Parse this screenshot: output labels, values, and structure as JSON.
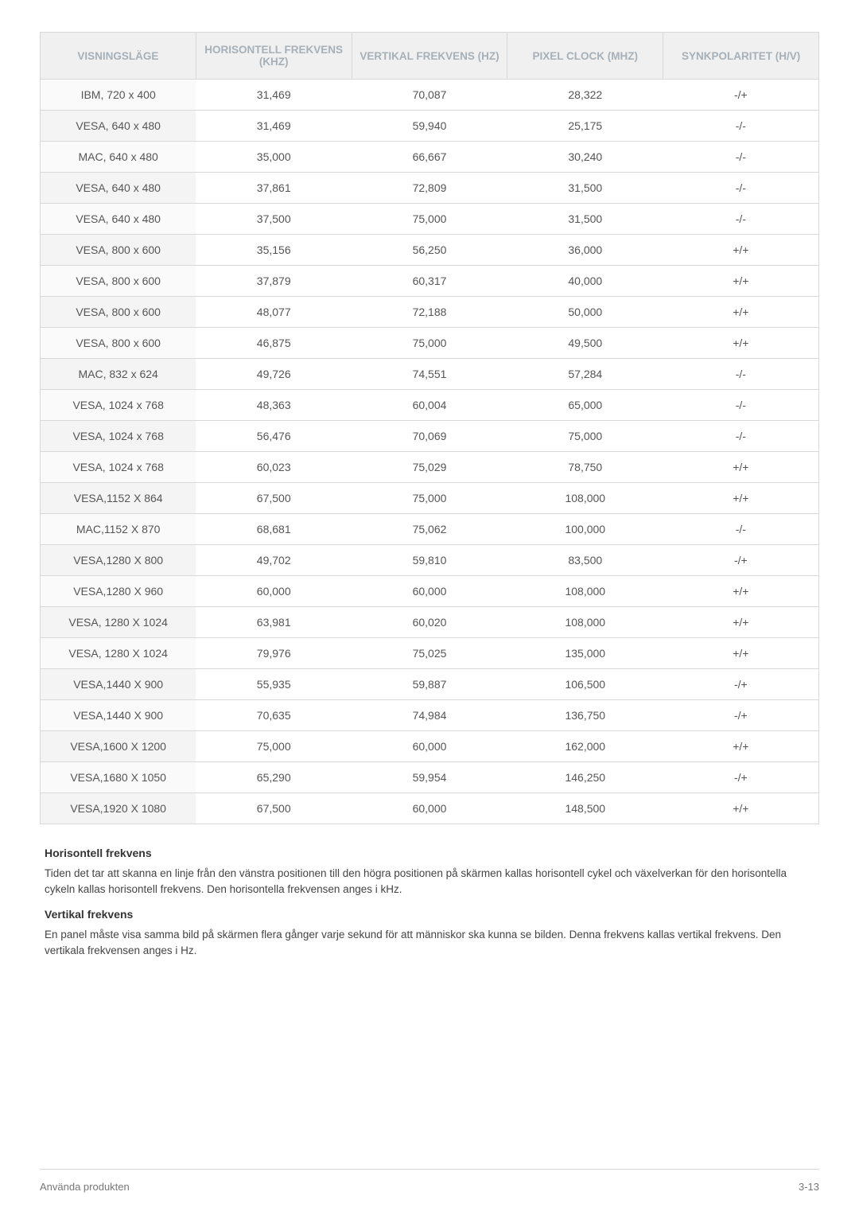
{
  "table": {
    "type": "table",
    "header_bg": "#f0f0f0",
    "header_color": "#a6b0b8",
    "border_color": "#d8d8d8",
    "row_bg_odd": "#fafafa",
    "row_bg_even": "#f4f4f4",
    "text_color": "#555555",
    "font_size": 14,
    "columns": [
      "VISNINGSLÄGE",
      "HORISONTELL FREKVENS (KHZ)",
      "VERTIKAL FREKVENS (HZ)",
      "PIXEL CLOCK (MHZ)",
      "SYNKPOLARITET (H/V)"
    ],
    "rows": [
      [
        "IBM, 720 x 400",
        "31,469",
        "70,087",
        "28,322",
        "-/+"
      ],
      [
        "VESA, 640 x 480",
        "31,469",
        "59,940",
        "25,175",
        "-/-"
      ],
      [
        "MAC, 640 x 480",
        "35,000",
        "66,667",
        "30,240",
        "-/-"
      ],
      [
        "VESA, 640 x 480",
        "37,861",
        "72,809",
        "31,500",
        "-/-"
      ],
      [
        "VESA, 640 x 480",
        "37,500",
        "75,000",
        "31,500",
        "-/-"
      ],
      [
        "VESA, 800 x 600",
        "35,156",
        "56,250",
        "36,000",
        "+/+"
      ],
      [
        "VESA, 800 x 600",
        "37,879",
        "60,317",
        "40,000",
        "+/+"
      ],
      [
        "VESA, 800 x 600",
        "48,077",
        "72,188",
        "50,000",
        "+/+"
      ],
      [
        "VESA, 800 x 600",
        "46,875",
        "75,000",
        "49,500",
        "+/+"
      ],
      [
        "MAC, 832 x 624",
        "49,726",
        "74,551",
        "57,284",
        "-/-"
      ],
      [
        "VESA, 1024 x 768",
        "48,363",
        "60,004",
        "65,000",
        "-/-"
      ],
      [
        "VESA, 1024 x 768",
        "56,476",
        "70,069",
        "75,000",
        "-/-"
      ],
      [
        "VESA, 1024 x 768",
        "60,023",
        "75,029",
        "78,750",
        "+/+"
      ],
      [
        "VESA,1152 X 864",
        "67,500",
        "75,000",
        "108,000",
        "+/+"
      ],
      [
        "MAC,1152 X 870",
        "68,681",
        "75,062",
        "100,000",
        "-/-"
      ],
      [
        "VESA,1280 X 800",
        "49,702",
        "59,810",
        "83,500",
        "-/+"
      ],
      [
        "VESA,1280 X 960",
        "60,000",
        "60,000",
        "108,000",
        "+/+"
      ],
      [
        "VESA, 1280 X 1024",
        "63,981",
        "60,020",
        "108,000",
        "+/+"
      ],
      [
        "VESA, 1280 X 1024",
        "79,976",
        "75,025",
        "135,000",
        "+/+"
      ],
      [
        "VESA,1440 X 900",
        "55,935",
        "59,887",
        "106,500",
        "-/+"
      ],
      [
        "VESA,1440 X 900",
        "70,635",
        "74,984",
        "136,750",
        "-/+"
      ],
      [
        "VESA,1600 X 1200",
        "75,000",
        "60,000",
        "162,000",
        "+/+"
      ],
      [
        "VESA,1680 X 1050",
        "65,290",
        "59,954",
        "146,250",
        "-/+"
      ],
      [
        "VESA,1920 X 1080",
        "67,500",
        "60,000",
        "148,500",
        "+/+"
      ]
    ]
  },
  "notes": {
    "h_title": "Horisontell frekvens",
    "h_body": "Tiden det tar att skanna en linje från den vänstra positionen till den högra positionen på skärmen kallas horisontell cykel och växelverkan för den horisontella cykeln kallas horisontell frekvens. Den horisontella frekvensen anges i kHz.",
    "v_title": "Vertikal frekvens",
    "v_body": "En panel måste visa samma bild på skärmen flera gånger varje sekund för att människor ska kunna se bilden. Denna frekvens kallas vertikal frekvens. Den vertikala frekvensen anges i Hz."
  },
  "footer": {
    "left": "Använda produkten",
    "right": "3-13"
  }
}
